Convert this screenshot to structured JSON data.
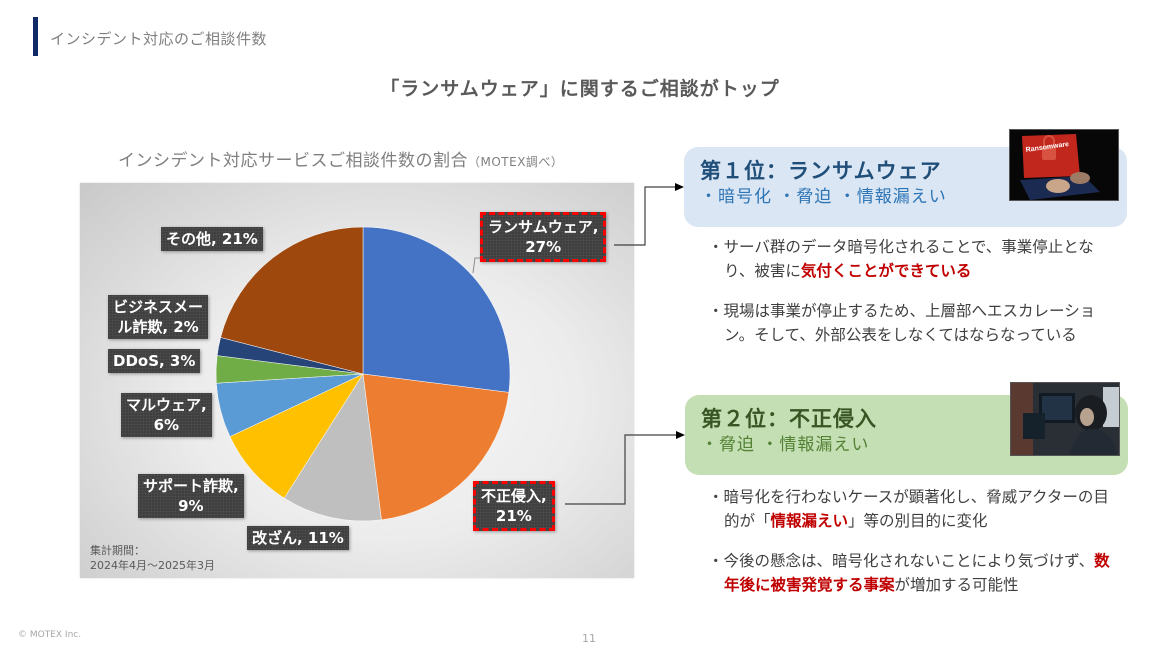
{
  "header": {
    "section_title": "インシデント対応のご相談件数",
    "headline": "「ランサムウェア」に関するご相談がトップ"
  },
  "chart": {
    "caption": "インシデント対応サービスご相談件数の割合",
    "caption_source": "（MOTEX調べ）",
    "period_label": "集計期間：",
    "period_value": "2024年4月～2025年3月"
  },
  "chart_data": {
    "type": "pie",
    "title": "インシデント対応サービスご相談件数の割合（MOTEX調べ）",
    "categories": [
      "ランサムウェア",
      "不正侵入",
      "改ざん",
      "サポート詐欺",
      "マルウェア",
      "DDoS",
      "ビジネスメール詐欺",
      "その他"
    ],
    "values": [
      27,
      21,
      11,
      9,
      6,
      3,
      2,
      21
    ],
    "unit": "%",
    "colors": [
      "#4472c4",
      "#ed7d31",
      "#bfbfbf",
      "#ffc000",
      "#5b9bd5",
      "#70ad47",
      "#264478",
      "#9e480e"
    ],
    "labels": [
      {
        "line1": "ランサムウェア,",
        "line2": "27%",
        "highlight": true
      },
      {
        "line1": "不正侵入,",
        "line2": "21%",
        "highlight": true
      },
      {
        "line1": "改ざん, 11%",
        "line2": "",
        "highlight": false
      },
      {
        "line1": "サポート詐欺,",
        "line2": "9%",
        "highlight": false
      },
      {
        "line1": "マルウェア,",
        "line2": "6%",
        "highlight": false
      },
      {
        "line1": "DDoS, 3%",
        "line2": "",
        "highlight": false
      },
      {
        "line1": "ビジネスメー",
        "line2": "ル詐欺, 2%",
        "highlight": false
      },
      {
        "line1": "その他, 21%",
        "line2": "",
        "highlight": false
      }
    ],
    "start_angle": "12 o'clock, clockwise",
    "legend": "none (data labels)"
  },
  "rank1": {
    "title": "第１位：ランサムウェア",
    "subtitle": "・暗号化 ・脅迫 ・情報漏えい",
    "photo_text": "Ransomware",
    "bullets": [
      {
        "before": "・サーバ群のデータ暗号化されることで、事業停止となり、被害に",
        "emphasis": "気付くことができている",
        "after": ""
      },
      {
        "before": "・現場は事業が停止するため、上層部へエスカレーション。そして、外部公表をしなくてはならなっている",
        "emphasis": "",
        "after": ""
      }
    ]
  },
  "rank2": {
    "title": "第２位：不正侵入",
    "subtitle": "・脅迫 ・情報漏えい",
    "bullets": [
      {
        "before": "・暗号化を行わないケースが顕著化し、脅威アクターの目的が「",
        "emphasis": "情報漏えい",
        "after": "」等の別目的に変化"
      },
      {
        "before": "・今後の懸念は、暗号化されないことにより気づけず、",
        "emphasis": "数年後に被害発覚する事案",
        "after": "が増加する可能性"
      }
    ]
  },
  "footer": {
    "copyright": "© MOTEX Inc.",
    "page_number": "11"
  },
  "colors": {
    "header_bar": "#0f2a66",
    "emphasis_red": "#c00000",
    "card1_bg": "#dae6f3",
    "card2_bg": "#c5dfb4",
    "label_highlight_border": "#ff0000"
  }
}
